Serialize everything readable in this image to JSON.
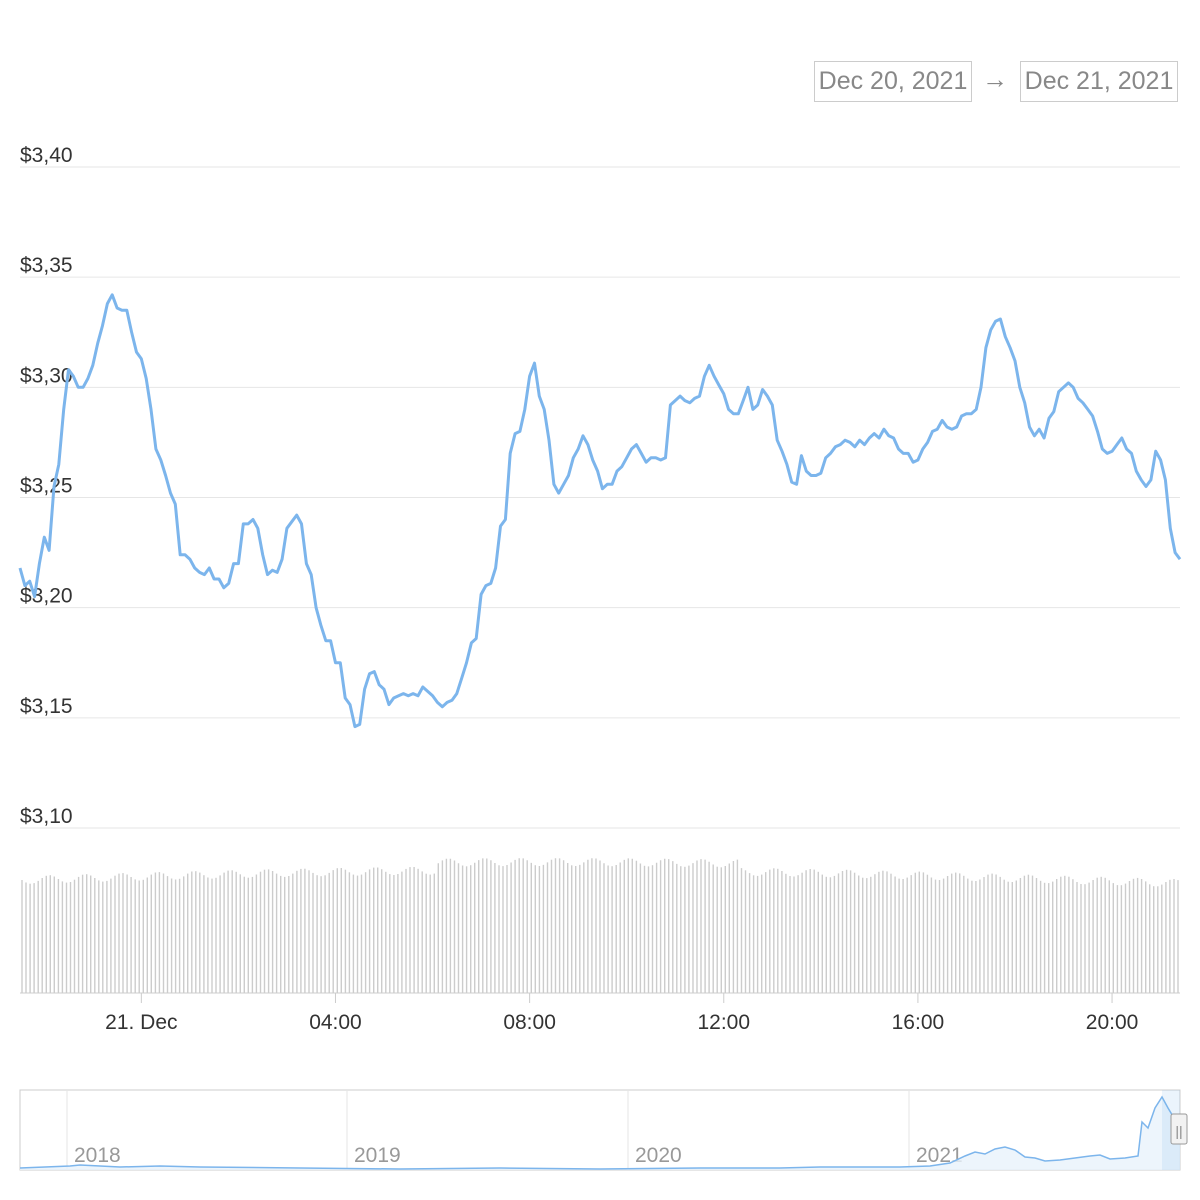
{
  "range_selector": {
    "from": "Dec 20, 2021",
    "arrow": "→",
    "to": "Dec 21, 2021"
  },
  "chart_data": {
    "type": "line",
    "currency_format": "$",
    "y_ticks": [
      "$3,40",
      "$3,35",
      "$3,30",
      "$3,25",
      "$3,20",
      "$3,15",
      "$3,10"
    ],
    "y_tick_values": [
      3.4,
      3.35,
      3.3,
      3.25,
      3.2,
      3.15,
      3.1
    ],
    "ylim": [
      3.1,
      3.4
    ],
    "x_ticks": [
      "21. Dec",
      "04:00",
      "08:00",
      "12:00",
      "16:00",
      "20:00"
    ],
    "x_tick_hours": [
      0,
      4,
      8,
      12,
      16,
      20
    ],
    "xlim_hours": [
      -2.5,
      21.4
    ],
    "grid": true,
    "colors": {
      "line": "#7cb5ec",
      "volume": "#cccccc",
      "grid": "#e6e6e6"
    },
    "series": [
      {
        "points": [
          [
            -2.5,
            3.218
          ],
          [
            -2.4,
            3.21
          ],
          [
            -2.3,
            3.212
          ],
          [
            -2.2,
            3.205
          ],
          [
            -2.1,
            3.22
          ],
          [
            -2.0,
            3.232
          ],
          [
            -1.9,
            3.226
          ],
          [
            -1.8,
            3.255
          ],
          [
            -1.7,
            3.265
          ],
          [
            -1.6,
            3.29
          ],
          [
            -1.5,
            3.308
          ],
          [
            -1.4,
            3.305
          ],
          [
            -1.3,
            3.3
          ],
          [
            -1.2,
            3.3
          ],
          [
            -1.1,
            3.304
          ],
          [
            -1.0,
            3.31
          ],
          [
            -0.9,
            3.32
          ],
          [
            -0.8,
            3.328
          ],
          [
            -0.7,
            3.338
          ],
          [
            -0.6,
            3.342
          ],
          [
            -0.5,
            3.336
          ],
          [
            -0.4,
            3.335
          ],
          [
            -0.3,
            3.335
          ],
          [
            -0.2,
            3.325
          ],
          [
            -0.1,
            3.316
          ],
          [
            0.0,
            3.313
          ],
          [
            0.1,
            3.304
          ],
          [
            0.2,
            3.29
          ],
          [
            0.3,
            3.272
          ],
          [
            0.4,
            3.267
          ],
          [
            0.5,
            3.26
          ],
          [
            0.6,
            3.252
          ],
          [
            0.7,
            3.247
          ],
          [
            0.8,
            3.224
          ],
          [
            0.9,
            3.224
          ],
          [
            1.0,
            3.222
          ],
          [
            1.1,
            3.218
          ],
          [
            1.2,
            3.216
          ],
          [
            1.3,
            3.215
          ],
          [
            1.4,
            3.218
          ],
          [
            1.5,
            3.213
          ],
          [
            1.6,
            3.213
          ],
          [
            1.7,
            3.209
          ],
          [
            1.8,
            3.211
          ],
          [
            1.9,
            3.22
          ],
          [
            2.0,
            3.22
          ],
          [
            2.1,
            3.238
          ],
          [
            2.2,
            3.238
          ],
          [
            2.3,
            3.24
          ],
          [
            2.4,
            3.236
          ],
          [
            2.5,
            3.224
          ],
          [
            2.6,
            3.215
          ],
          [
            2.7,
            3.217
          ],
          [
            2.8,
            3.216
          ],
          [
            2.9,
            3.222
          ],
          [
            3.0,
            3.236
          ],
          [
            3.1,
            3.239
          ],
          [
            3.2,
            3.242
          ],
          [
            3.3,
            3.238
          ],
          [
            3.4,
            3.22
          ],
          [
            3.5,
            3.215
          ],
          [
            3.6,
            3.2
          ],
          [
            3.7,
            3.192
          ],
          [
            3.8,
            3.185
          ],
          [
            3.9,
            3.185
          ],
          [
            4.0,
            3.175
          ],
          [
            4.1,
            3.175
          ],
          [
            4.2,
            3.159
          ],
          [
            4.3,
            3.156
          ],
          [
            4.4,
            3.146
          ],
          [
            4.5,
            3.147
          ],
          [
            4.6,
            3.163
          ],
          [
            4.7,
            3.17
          ],
          [
            4.8,
            3.171
          ],
          [
            4.9,
            3.165
          ],
          [
            5.0,
            3.163
          ],
          [
            5.1,
            3.156
          ],
          [
            5.2,
            3.159
          ],
          [
            5.3,
            3.16
          ],
          [
            5.4,
            3.161
          ],
          [
            5.5,
            3.16
          ],
          [
            5.6,
            3.161
          ],
          [
            5.7,
            3.16
          ],
          [
            5.8,
            3.164
          ],
          [
            5.9,
            3.162
          ],
          [
            6.0,
            3.16
          ],
          [
            6.1,
            3.157
          ],
          [
            6.2,
            3.155
          ],
          [
            6.3,
            3.157
          ],
          [
            6.4,
            3.158
          ],
          [
            6.5,
            3.161
          ],
          [
            6.6,
            3.168
          ],
          [
            6.7,
            3.175
          ],
          [
            6.8,
            3.184
          ],
          [
            6.9,
            3.186
          ],
          [
            7.0,
            3.206
          ],
          [
            7.1,
            3.21
          ],
          [
            7.2,
            3.211
          ],
          [
            7.3,
            3.218
          ],
          [
            7.4,
            3.237
          ],
          [
            7.5,
            3.24
          ],
          [
            7.6,
            3.27
          ],
          [
            7.7,
            3.279
          ],
          [
            7.8,
            3.28
          ],
          [
            7.9,
            3.29
          ],
          [
            8.0,
            3.305
          ],
          [
            8.1,
            3.311
          ],
          [
            8.2,
            3.296
          ],
          [
            8.3,
            3.29
          ],
          [
            8.4,
            3.276
          ],
          [
            8.5,
            3.256
          ],
          [
            8.6,
            3.252
          ],
          [
            8.7,
            3.256
          ],
          [
            8.8,
            3.26
          ],
          [
            8.9,
            3.268
          ],
          [
            9.0,
            3.272
          ],
          [
            9.1,
            3.278
          ],
          [
            9.2,
            3.274
          ],
          [
            9.3,
            3.267
          ],
          [
            9.4,
            3.262
          ],
          [
            9.5,
            3.254
          ],
          [
            9.6,
            3.256
          ],
          [
            9.7,
            3.256
          ],
          [
            9.8,
            3.262
          ],
          [
            9.9,
            3.264
          ],
          [
            10.0,
            3.268
          ],
          [
            10.1,
            3.272
          ],
          [
            10.2,
            3.274
          ],
          [
            10.3,
            3.27
          ],
          [
            10.4,
            3.266
          ],
          [
            10.5,
            3.268
          ],
          [
            10.6,
            3.268
          ],
          [
            10.7,
            3.267
          ],
          [
            10.8,
            3.268
          ],
          [
            10.9,
            3.292
          ],
          [
            11.0,
            3.294
          ],
          [
            11.1,
            3.296
          ],
          [
            11.2,
            3.294
          ],
          [
            11.3,
            3.293
          ],
          [
            11.4,
            3.295
          ],
          [
            11.5,
            3.296
          ],
          [
            11.6,
            3.305
          ],
          [
            11.7,
            3.31
          ],
          [
            11.8,
            3.305
          ],
          [
            11.9,
            3.301
          ],
          [
            12.0,
            3.297
          ],
          [
            12.1,
            3.29
          ],
          [
            12.2,
            3.288
          ],
          [
            12.3,
            3.288
          ],
          [
            12.4,
            3.294
          ],
          [
            12.5,
            3.3
          ],
          [
            12.6,
            3.29
          ],
          [
            12.7,
            3.292
          ],
          [
            12.8,
            3.299
          ],
          [
            12.9,
            3.296
          ],
          [
            13.0,
            3.292
          ],
          [
            13.1,
            3.276
          ],
          [
            13.2,
            3.271
          ],
          [
            13.3,
            3.265
          ],
          [
            13.4,
            3.257
          ],
          [
            13.5,
            3.256
          ],
          [
            13.6,
            3.269
          ],
          [
            13.7,
            3.262
          ],
          [
            13.8,
            3.26
          ],
          [
            13.9,
            3.26
          ],
          [
            14.0,
            3.261
          ],
          [
            14.1,
            3.268
          ],
          [
            14.2,
            3.27
          ],
          [
            14.3,
            3.273
          ],
          [
            14.4,
            3.274
          ],
          [
            14.5,
            3.276
          ],
          [
            14.6,
            3.275
          ],
          [
            14.7,
            3.273
          ],
          [
            14.8,
            3.276
          ],
          [
            14.9,
            3.274
          ],
          [
            15.0,
            3.277
          ],
          [
            15.1,
            3.279
          ],
          [
            15.2,
            3.277
          ],
          [
            15.3,
            3.281
          ],
          [
            15.4,
            3.278
          ],
          [
            15.5,
            3.277
          ],
          [
            15.6,
            3.272
          ],
          [
            15.7,
            3.27
          ],
          [
            15.8,
            3.27
          ],
          [
            15.9,
            3.266
          ],
          [
            16.0,
            3.267
          ],
          [
            16.1,
            3.272
          ],
          [
            16.2,
            3.275
          ],
          [
            16.3,
            3.28
          ],
          [
            16.4,
            3.281
          ],
          [
            16.5,
            3.285
          ],
          [
            16.6,
            3.282
          ],
          [
            16.7,
            3.281
          ],
          [
            16.8,
            3.282
          ],
          [
            16.9,
            3.287
          ],
          [
            17.0,
            3.288
          ],
          [
            17.1,
            3.288
          ],
          [
            17.2,
            3.29
          ],
          [
            17.3,
            3.3
          ],
          [
            17.4,
            3.318
          ],
          [
            17.5,
            3.326
          ],
          [
            17.6,
            3.33
          ],
          [
            17.7,
            3.331
          ],
          [
            17.8,
            3.323
          ],
          [
            17.9,
            3.318
          ],
          [
            18.0,
            3.312
          ],
          [
            18.1,
            3.3
          ],
          [
            18.2,
            3.293
          ],
          [
            18.3,
            3.282
          ],
          [
            18.4,
            3.278
          ],
          [
            18.5,
            3.281
          ],
          [
            18.6,
            3.277
          ],
          [
            18.7,
            3.286
          ],
          [
            18.8,
            3.289
          ],
          [
            18.9,
            3.298
          ],
          [
            19.0,
            3.3
          ],
          [
            19.1,
            3.302
          ],
          [
            19.2,
            3.3
          ],
          [
            19.3,
            3.295
          ],
          [
            19.4,
            3.293
          ],
          [
            19.5,
            3.29
          ],
          [
            19.6,
            3.287
          ],
          [
            19.7,
            3.28
          ],
          [
            19.8,
            3.272
          ],
          [
            19.9,
            3.27
          ],
          [
            20.0,
            3.271
          ],
          [
            20.1,
            3.274
          ],
          [
            20.2,
            3.277
          ],
          [
            20.3,
            3.272
          ],
          [
            20.4,
            3.27
          ],
          [
            20.5,
            3.262
          ],
          [
            20.6,
            3.258
          ],
          [
            20.7,
            3.255
          ],
          [
            20.8,
            3.258
          ],
          [
            20.9,
            3.271
          ],
          [
            21.0,
            3.267
          ],
          [
            21.1,
            3.258
          ],
          [
            21.2,
            3.236
          ],
          [
            21.3,
            3.225
          ],
          [
            21.4,
            3.222
          ]
        ]
      }
    ]
  },
  "navigator": {
    "labels": [
      "2018",
      "2019",
      "2020",
      "2021"
    ],
    "handle": "||"
  }
}
